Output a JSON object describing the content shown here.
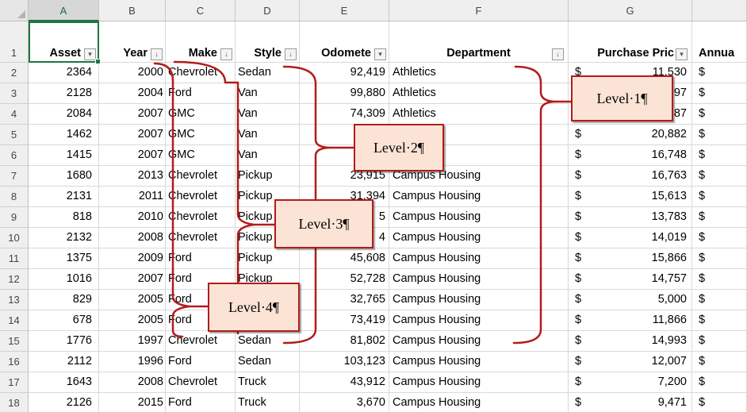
{
  "columns": [
    "A",
    "B",
    "C",
    "D",
    "E",
    "F",
    "G"
  ],
  "selected_column": "A",
  "headers": {
    "asset": "Asset",
    "year": "Year",
    "make": "Make",
    "style": "Style",
    "odometer": "Odomete",
    "department": "Department",
    "purchase_price": "Purchase Pric",
    "annual": "Annua"
  },
  "filter_glyphs": {
    "dropdown": "▾",
    "sorted": "↓"
  },
  "currency_symbol": "$",
  "row_numbers": [
    "1",
    "2",
    "3",
    "4",
    "5",
    "6",
    "7",
    "8",
    "9",
    "10",
    "11",
    "12",
    "13",
    "14",
    "15",
    "16",
    "17",
    "18"
  ],
  "rows": [
    {
      "asset": "2364",
      "year": "2000",
      "make": "Chevrolet",
      "style": "Sedan",
      "odometer": "92,419",
      "department": "Athletics",
      "price": "11,530"
    },
    {
      "asset": "2128",
      "year": "2004",
      "make": "Ford",
      "style": "Van",
      "odometer": "99,880",
      "department": "Athletics",
      "price": "18,797"
    },
    {
      "asset": "2084",
      "year": "2007",
      "make": "GMC",
      "style": "Van",
      "odometer": "74,309",
      "department": "Athletics",
      "price": "19,887"
    },
    {
      "asset": "1462",
      "year": "2007",
      "make": "GMC",
      "style": "Van",
      "odometer": "82,",
      "department": "",
      "price": "20,882"
    },
    {
      "asset": "1415",
      "year": "2007",
      "make": "GMC",
      "style": "Van",
      "odometer": "8",
      "department": "s",
      "price": "16,748"
    },
    {
      "asset": "1680",
      "year": "2013",
      "make": "Chevrolet",
      "style": "Pickup",
      "odometer": "23,915",
      "department": "Campus Housing",
      "price": "16,763"
    },
    {
      "asset": "2131",
      "year": "2011",
      "make": "Chevrolet",
      "style": "Pickup",
      "odometer": "31,394",
      "department": "Campus Housing",
      "price": "15,613"
    },
    {
      "asset": "818",
      "year": "2010",
      "make": "Chevrolet",
      "style": "Pickup",
      "odometer": "5",
      "department": "Campus Housing",
      "price": "13,783"
    },
    {
      "asset": "2132",
      "year": "2008",
      "make": "Chevrolet",
      "style": "Pickup",
      "odometer": "4",
      "department": "Campus Housing",
      "price": "14,019"
    },
    {
      "asset": "1375",
      "year": "2009",
      "make": "Ford",
      "style": "Pickup",
      "odometer": "45,608",
      "department": "Campus Housing",
      "price": "15,866"
    },
    {
      "asset": "1016",
      "year": "2007",
      "make": "Ford",
      "style": "Pickup",
      "odometer": "52,728",
      "department": "Campus Housing",
      "price": "14,757"
    },
    {
      "asset": "829",
      "year": "2005",
      "make": "Ford",
      "style": "",
      "odometer": "32,765",
      "department": "Campus Housing",
      "price": "5,000"
    },
    {
      "asset": "678",
      "year": "2005",
      "make": "Ford",
      "style": "",
      "odometer": "73,419",
      "department": "Campus Housing",
      "price": "11,866"
    },
    {
      "asset": "1776",
      "year": "1997",
      "make": "Chevrolet",
      "style": "Sedan",
      "odometer": "81,802",
      "department": "Campus Housing",
      "price": "14,993"
    },
    {
      "asset": "2112",
      "year": "1996",
      "make": "Ford",
      "style": "Sedan",
      "odometer": "103,123",
      "department": "Campus Housing",
      "price": "12,007"
    },
    {
      "asset": "1643",
      "year": "2008",
      "make": "Chevrolet",
      "style": "Truck",
      "odometer": "43,912",
      "department": "Campus Housing",
      "price": "7,200"
    },
    {
      "asset": "2126",
      "year": "2015",
      "make": "Ford",
      "style": "Truck",
      "odometer": "3,670",
      "department": "Campus Housing",
      "price": "9,471"
    }
  ],
  "annotations": [
    "Level·1¶",
    "Level·2¶",
    "Level·3¶",
    "Level·4¶"
  ],
  "colors": {
    "accent": "#217346",
    "bracket": "#b31b1b",
    "callout_fill": "#fbe4d5"
  }
}
